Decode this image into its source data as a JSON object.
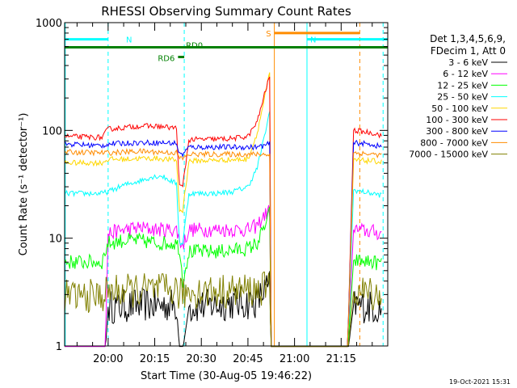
{
  "chart_data": {
    "type": "line",
    "title": "RHESSI Observing Summary Count Rates",
    "xlabel": "Start Time (30-Aug-05 19:46:22)",
    "ylabel": "Count Rate (s⁻¹ detector⁻¹)",
    "yscale": "log",
    "ylim": [
      1,
      1000
    ],
    "xlim_min": [
      -14,
      90
    ],
    "x_unit": "minutes after 20:00",
    "x_ticks": [
      {
        "v": 0,
        "label": "20:00"
      },
      {
        "v": 15,
        "label": "20:15"
      },
      {
        "v": 30,
        "label": "20:30"
      },
      {
        "v": 45,
        "label": "20:45"
      },
      {
        "v": 60,
        "label": "21:00"
      },
      {
        "v": 75,
        "label": "21:15"
      }
    ],
    "y_ticks": [
      {
        "v": 1,
        "label": "1"
      },
      {
        "v": 10,
        "label": "10"
      },
      {
        "v": 100,
        "label": "100"
      },
      {
        "v": 1000,
        "label": "1000"
      }
    ],
    "legend_header": [
      "Det 1,3,4,5,6,9,",
      "FDecim 1, Att 0"
    ],
    "series": [
      {
        "name": "3 - 6 keV",
        "color": "#000000",
        "points": [
          [
            -14,
            0.8
          ],
          [
            -1,
            0.8
          ],
          [
            0,
            2.3
          ],
          [
            10,
            2.4
          ],
          [
            22,
            2.4
          ],
          [
            23,
            0.9
          ],
          [
            24,
            0.9
          ],
          [
            26,
            2.3
          ],
          [
            35,
            2.4
          ],
          [
            40,
            2.5
          ],
          [
            45,
            2.5
          ],
          [
            48,
            2.6
          ],
          [
            50,
            3.2
          ],
          [
            52,
            3.6
          ],
          [
            52.5,
            0.8
          ],
          [
            77,
            0.8
          ],
          [
            79,
            2.4
          ],
          [
            85,
            2.3
          ],
          [
            88,
            2.2
          ]
        ]
      },
      {
        "name": "6 - 12 keV",
        "color": "#ff00ff",
        "points": [
          [
            -14,
            0.8
          ],
          [
            -1,
            0.8
          ],
          [
            0,
            11
          ],
          [
            5,
            12
          ],
          [
            10,
            12.5
          ],
          [
            16,
            12
          ],
          [
            22,
            12
          ],
          [
            23,
            9.5
          ],
          [
            24,
            8.5
          ],
          [
            26,
            12
          ],
          [
            35,
            12
          ],
          [
            45,
            12
          ],
          [
            48,
            13
          ],
          [
            50,
            16
          ],
          [
            52,
            18
          ],
          [
            52.5,
            0.8
          ],
          [
            77,
            0.8
          ],
          [
            79,
            12
          ],
          [
            85,
            11.5
          ],
          [
            88,
            11
          ]
        ]
      },
      {
        "name": "12 - 25 keV",
        "color": "#00ff00",
        "points": [
          [
            -14,
            6
          ],
          [
            -2,
            6
          ],
          [
            0,
            9
          ],
          [
            5,
            9.5
          ],
          [
            10,
            9.5
          ],
          [
            16,
            9
          ],
          [
            22,
            9
          ],
          [
            23,
            8
          ],
          [
            24,
            4
          ],
          [
            26,
            7.5
          ],
          [
            35,
            7.5
          ],
          [
            45,
            8
          ],
          [
            48,
            9
          ],
          [
            50,
            12
          ],
          [
            52,
            17
          ],
          [
            52.5,
            0.8
          ],
          [
            77,
            0.8
          ],
          [
            79,
            6.2
          ],
          [
            85,
            6
          ],
          [
            88,
            5.8
          ]
        ]
      },
      {
        "name": "25 - 50 keV",
        "color": "#00ffff",
        "points": [
          [
            -14,
            26
          ],
          [
            -2,
            26
          ],
          [
            0,
            27
          ],
          [
            5,
            31
          ],
          [
            10,
            34
          ],
          [
            14,
            37
          ],
          [
            17,
            38
          ],
          [
            22,
            32
          ],
          [
            23,
            9
          ],
          [
            24,
            9
          ],
          [
            26,
            26
          ],
          [
            35,
            26
          ],
          [
            40,
            27
          ],
          [
            45,
            30
          ],
          [
            48,
            45
          ],
          [
            50,
            80
          ],
          [
            52,
            150
          ],
          [
            52.5,
            0.8
          ],
          [
            77,
            0.8
          ],
          [
            79,
            28
          ],
          [
            85,
            26
          ],
          [
            88,
            25
          ]
        ]
      },
      {
        "name": "50 - 100 keV",
        "color": "#ffd700",
        "points": [
          [
            -14,
            50
          ],
          [
            -2,
            50
          ],
          [
            0,
            54
          ],
          [
            5,
            54
          ],
          [
            10,
            55
          ],
          [
            16,
            55
          ],
          [
            22,
            53
          ],
          [
            23,
            18
          ],
          [
            24,
            18
          ],
          [
            26,
            52
          ],
          [
            35,
            53
          ],
          [
            45,
            54
          ],
          [
            48,
            95
          ],
          [
            50,
            180
          ],
          [
            52,
            340
          ],
          [
            52.5,
            0.8
          ],
          [
            77,
            0.8
          ],
          [
            79,
            53
          ],
          [
            85,
            52
          ],
          [
            88,
            51
          ]
        ]
      },
      {
        "name": "100 - 300 keV",
        "color": "#ff0000",
        "points": [
          [
            -14,
            88
          ],
          [
            -2,
            86
          ],
          [
            0,
            103
          ],
          [
            5,
            106
          ],
          [
            10,
            110
          ],
          [
            16,
            109
          ],
          [
            22,
            105
          ],
          [
            23,
            30
          ],
          [
            24,
            30
          ],
          [
            26,
            82
          ],
          [
            35,
            83
          ],
          [
            40,
            84
          ],
          [
            45,
            88
          ],
          [
            48,
            120
          ],
          [
            50,
            200
          ],
          [
            52,
            320
          ],
          [
            52.5,
            0.8
          ],
          [
            77,
            0.8
          ],
          [
            79,
            100
          ],
          [
            85,
            95
          ],
          [
            88,
            90
          ]
        ]
      },
      {
        "name": "300 - 800 keV",
        "color": "#0000ff",
        "points": [
          [
            -14,
            75
          ],
          [
            -2,
            72
          ],
          [
            0,
            75
          ],
          [
            5,
            76
          ],
          [
            10,
            77
          ],
          [
            16,
            77
          ],
          [
            22,
            76
          ],
          [
            23,
            60
          ],
          [
            24,
            60
          ],
          [
            26,
            70
          ],
          [
            35,
            70
          ],
          [
            45,
            70
          ],
          [
            48,
            70
          ],
          [
            50,
            72
          ],
          [
            52,
            75
          ],
          [
            52.5,
            0.8
          ],
          [
            77,
            0.8
          ],
          [
            79,
            77
          ],
          [
            85,
            74
          ],
          [
            88,
            70
          ]
        ]
      },
      {
        "name": "800 - 7000 keV",
        "color": "#ff8c00",
        "points": [
          [
            -14,
            63
          ],
          [
            -2,
            62
          ],
          [
            0,
            62
          ],
          [
            5,
            63
          ],
          [
            10,
            64
          ],
          [
            16,
            63
          ],
          [
            22,
            62
          ],
          [
            23,
            55
          ],
          [
            24,
            55
          ],
          [
            26,
            60
          ],
          [
            35,
            60
          ],
          [
            45,
            60
          ],
          [
            48,
            60
          ],
          [
            50,
            60
          ],
          [
            52,
            60
          ],
          [
            52.5,
            0.8
          ],
          [
            77,
            0.8
          ],
          [
            79,
            62
          ],
          [
            85,
            60
          ],
          [
            88,
            59
          ]
        ]
      },
      {
        "name": "7000 - 15000 keV",
        "color": "#808000",
        "points": [
          [
            -14,
            2.9
          ],
          [
            -2,
            2.9
          ],
          [
            0,
            3.2
          ],
          [
            10,
            3.3
          ],
          [
            22,
            3.3
          ],
          [
            23,
            3
          ],
          [
            24,
            3
          ],
          [
            26,
            3.2
          ],
          [
            35,
            3.2
          ],
          [
            45,
            3.3
          ],
          [
            48,
            3.3
          ],
          [
            50,
            3.4
          ],
          [
            52,
            3.5
          ],
          [
            52.5,
            0.8
          ],
          [
            77,
            0.8
          ],
          [
            79,
            3.2
          ],
          [
            85,
            3.1
          ],
          [
            88,
            3
          ]
        ]
      }
    ],
    "annotations": [
      {
        "label": "N",
        "color": "#00ffff",
        "kind": "night",
        "x_min": [
          -14,
          0
        ],
        "level": 700
      },
      {
        "label": "N",
        "color": "#00ffff",
        "kind": "night",
        "x_min": [
          64,
          90
        ],
        "level": 700
      },
      {
        "label": "S",
        "color": "#ff8c00",
        "kind": "saa",
        "x_min": [
          53.5,
          81
        ],
        "level": 800
      },
      {
        "label": "RD0",
        "color": "#008000",
        "kind": "data",
        "x_min": [
          -14,
          90
        ],
        "level": 590
      },
      {
        "label": "RD6",
        "color": "#008000",
        "kind": "data",
        "x_min": [
          22.5,
          24.5
        ],
        "level": 480
      }
    ],
    "vlines": [
      {
        "x_min": -13.8,
        "color": "#00ffff",
        "style": "solid"
      },
      {
        "x_min": 0,
        "color": "#00ffff",
        "style": "dash"
      },
      {
        "x_min": 24.5,
        "color": "#00ffff",
        "style": "dash"
      },
      {
        "x_min": 53.5,
        "color": "#ff8c00",
        "style": "solid"
      },
      {
        "x_min": 64,
        "color": "#00ffff",
        "style": "solid"
      },
      {
        "x_min": 81,
        "color": "#ff8c00",
        "style": "dash"
      },
      {
        "x_min": 88.5,
        "color": "#00ffff",
        "style": "dash"
      }
    ],
    "footer_timestamp": "19-Oct-2021 15:31"
  }
}
